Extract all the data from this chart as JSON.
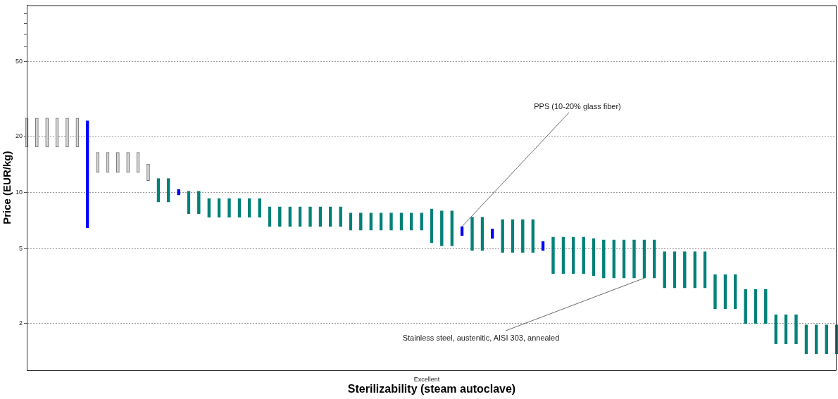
{
  "chart_data": {
    "type": "bar",
    "xlabel": "Sterilizability (steam autoclave)",
    "ylabel": "Price (EUR/kg)",
    "annotations": [
      "Excellent",
      "PPS (10-20% glass fiber)",
      "Stainless steel, austenitic, AISI 303, annealed"
    ],
    "categories": [
      null,
      null,
      null,
      null,
      null,
      null,
      null,
      null,
      null,
      null,
      null,
      null,
      null,
      null,
      null,
      null,
      null,
      null,
      null,
      null,
      null,
      null,
      null,
      null,
      null,
      null,
      null,
      null,
      null,
      null,
      null,
      null,
      null,
      null,
      null,
      null,
      null,
      null,
      null,
      null,
      null,
      null,
      null,
      null,
      null,
      null,
      null,
      null,
      null,
      null,
      null,
      null,
      null,
      null,
      null,
      null,
      null,
      null,
      null,
      null,
      null,
      null,
      null,
      null,
      null,
      null,
      null,
      null,
      null,
      null,
      null,
      null,
      null,
      null,
      null,
      null,
      null,
      null,
      null,
      null,
      null
    ],
    "base": [
      17.5,
      17.5,
      17.5,
      17.5,
      17.5,
      17.5,
      6.5,
      12.8,
      12.8,
      12.8,
      12.8,
      12.8,
      11.6,
      8.9,
      8.9,
      9.7,
      7.7,
      7.7,
      7.4,
      7.4,
      7.4,
      7.4,
      7.4,
      7.4,
      6.6,
      6.6,
      6.6,
      6.6,
      6.6,
      6.6,
      6.6,
      6.6,
      6.3,
      6.3,
      6.3,
      6.3,
      6.3,
      6.3,
      6.3,
      6.3,
      5.4,
      5.2,
      5.2,
      5.9,
      4.9,
      4.9,
      5.7,
      4.8,
      4.8,
      4.8,
      4.8,
      4.9,
      3.7,
      3.7,
      3.7,
      3.7,
      3.6,
      3.5,
      3.5,
      3.5,
      3.5,
      3.5,
      3.5,
      3.1,
      3.1,
      3.1,
      3.1,
      3.1,
      2.4,
      2.4,
      2.4,
      2.0,
      2.0,
      2.0,
      1.56,
      1.56,
      1.56,
      1.38,
      1.38,
      1.38,
      1.38
    ],
    "values": [
      7.5,
      7.5,
      7.5,
      7.5,
      7.5,
      7.5,
      17.7,
      3.6,
      3.6,
      3.6,
      3.6,
      3.6,
      2.6,
      3,
      3,
      0.7,
      2.5,
      2.5,
      1.9,
      1.9,
      1.9,
      1.9,
      1.9,
      1.9,
      1.8,
      1.8,
      1.8,
      1.8,
      1.8,
      1.8,
      1.8,
      1.8,
      1.5,
      1.5,
      1.5,
      1.5,
      1.5,
      1.5,
      1.5,
      1.5,
      2.8,
      2.8,
      2.8,
      0.7,
      2.5,
      2.5,
      0.7,
      2.4,
      2.4,
      2.4,
      2.4,
      0.6,
      2.1,
      2.1,
      2.1,
      2.1,
      2.1,
      2.1,
      2.1,
      2.1,
      2.1,
      2.1,
      2.1,
      1.75,
      1.75,
      1.75,
      1.75,
      1.75,
      1.25,
      1.25,
      1.25,
      1.05,
      1.05,
      1.05,
      0.67,
      0.67,
      0.67,
      0.59,
      0.59,
      0.59,
      0.59
    ],
    "colors": [
      "#d4d4d4",
      "#d4d4d4",
      "#d4d4d4",
      "#d4d4d4",
      "#d4d4d4",
      "#d4d4d4",
      "#0000ff",
      "#d4d4d4",
      "#d4d4d4",
      "#d4d4d4",
      "#d4d4d4",
      "#d4d4d4",
      "#d4d4d4",
      "#008078",
      "#008078",
      "#0000ff",
      "#008078",
      "#008078",
      "#008078",
      "#008078",
      "#008078",
      "#008078",
      "#008078",
      "#008078",
      "#008078",
      "#008078",
      "#008078",
      "#008078",
      "#008078",
      "#008078",
      "#008078",
      "#008078",
      "#008078",
      "#008078",
      "#008078",
      "#008078",
      "#008078",
      "#008078",
      "#008078",
      "#008078",
      "#008078",
      "#008078",
      "#008078",
      "#0000ff",
      "#008078",
      "#008078",
      "#0000ff",
      "#008078",
      "#008078",
      "#008078",
      "#008078",
      "#0000ff",
      "#008078",
      "#008078",
      "#008078",
      "#008078",
      "#008078",
      "#008078",
      "#008078",
      "#008078",
      "#008078",
      "#008078",
      "#008078",
      "#008078",
      "#008078",
      "#008078",
      "#008078",
      "#008078",
      "#008078",
      "#008078",
      "#008078",
      "#008078",
      "#008078",
      "#008078",
      "#008078",
      "#008078",
      "#008078",
      "#008078",
      "#008078",
      "#008078",
      "#008078"
    ],
    "log": true,
    "ylim": [
      1.13,
      100
    ],
    "yticks": [
      2,
      5,
      10,
      20,
      50,
      {
        "value": 60,
        "label": null
      },
      {
        "value": 70,
        "label": null
      },
      {
        "value": 80,
        "label": null
      },
      {
        "value": 90,
        "label": null
      }
    ],
    "grid": "y",
    "legend": false
  }
}
